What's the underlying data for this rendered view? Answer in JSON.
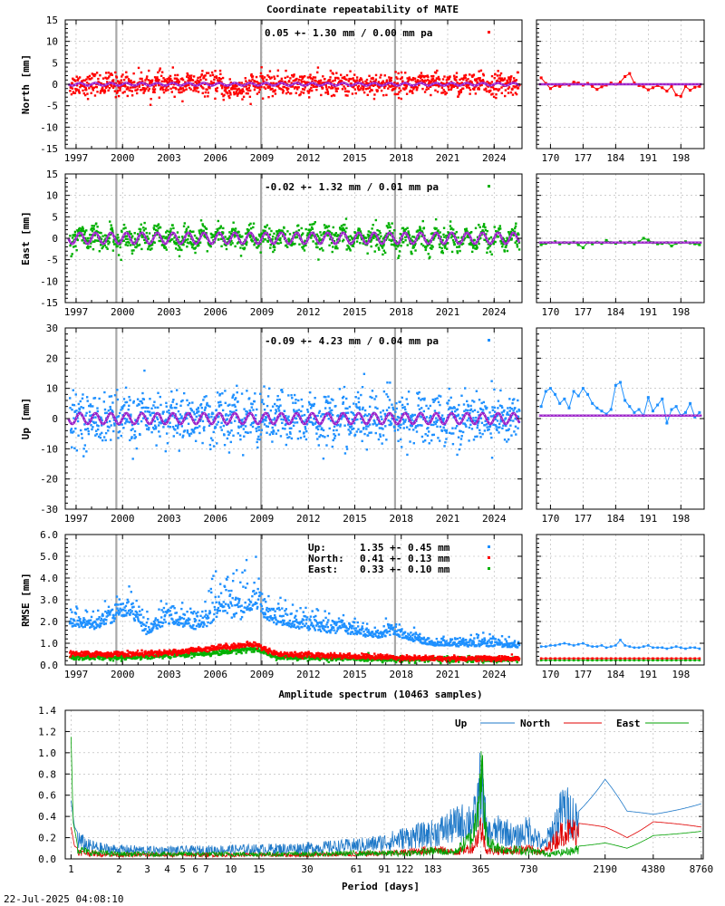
{
  "chart_data": [
    {
      "type": "scatter",
      "title": "Coordinate repeatability of MATE",
      "ylabel": "North [mm]",
      "ylim": [
        -15,
        15
      ],
      "yticks": [
        -15,
        -10,
        -5,
        0,
        5,
        10,
        15
      ],
      "xlim": [
        1996.3,
        2025.8
      ],
      "xticks": [
        1997,
        2000,
        2003,
        2006,
        2009,
        2012,
        2015,
        2018,
        2021,
        2024
      ],
      "xtick_labels": [
        "1997",
        "2000",
        "2003",
        "2006",
        "2009",
        "2012",
        "2015",
        "2018",
        "2021",
        "2024"
      ],
      "equipment_changes": [
        1999.6,
        2008.95,
        2017.6
      ],
      "annotation": "0.05 +- 1.30 mm /  0.00 mm pa",
      "color": "#ff0000",
      "spread": 1.3,
      "seasonal_amplitude": 0.3,
      "zoom": {
        "xlim": [
          167,
          203
        ],
        "xticks": [
          170,
          177,
          184,
          191,
          198
        ],
        "ylim": [
          -15,
          15
        ],
        "values": [
          1.5,
          0.2,
          -1.0,
          -0.3,
          -0.5,
          0.0,
          -0.2,
          0.5,
          0.3,
          -0.2,
          0.2,
          -0.5,
          -1.2,
          -0.6,
          -0.2,
          0.3,
          0.0,
          0.5,
          1.8,
          2.5,
          0.3,
          -0.3,
          -0.6,
          -1.3,
          -0.8,
          -0.3,
          -0.8,
          -1.6,
          -0.5,
          -2.5,
          -2.8,
          -0.5,
          -1.4,
          -0.7,
          -0.5
        ]
      }
    },
    {
      "type": "scatter",
      "ylabel": "East [mm]",
      "ylim": [
        -15,
        15
      ],
      "yticks": [
        -15,
        -10,
        -5,
        0,
        5,
        10,
        15
      ],
      "xlim": [
        1996.3,
        2025.8
      ],
      "xticks": [
        1997,
        2000,
        2003,
        2006,
        2009,
        2012,
        2015,
        2018,
        2021,
        2024
      ],
      "xtick_labels": [
        "1997",
        "2000",
        "2003",
        "2006",
        "2009",
        "2012",
        "2015",
        "2018",
        "2021",
        "2024"
      ],
      "equipment_changes": [
        1999.6,
        2008.95,
        2017.6
      ],
      "annotation": "-0.02 +- 1.32 mm /  0.01 mm pa",
      "color": "#00b000",
      "spread": 1.3,
      "seasonal_amplitude": 1.3,
      "zoom": {
        "xlim": [
          167,
          203
        ],
        "xticks": [
          170,
          177,
          184,
          191,
          198
        ],
        "ylim": [
          -15,
          15
        ],
        "values": [
          -1.5,
          -1.2,
          -1.0,
          -0.8,
          -1.3,
          -1.0,
          -1.2,
          -0.9,
          -1.5,
          -2.2,
          -1.0,
          -1.3,
          -0.9,
          -1.2,
          -0.5,
          -1.0,
          -1.2,
          -0.8,
          -1.1,
          -0.9,
          -1.3,
          -0.8,
          0.0,
          -0.4,
          -1.0,
          -1.3,
          -1.2,
          -1.0,
          -1.8,
          -1.2,
          -1.0,
          -0.8,
          -1.1,
          -1.3,
          -1.5
        ]
      }
    },
    {
      "type": "scatter",
      "ylabel": "Up [mm]",
      "ylim": [
        -30,
        30
      ],
      "yticks": [
        -30,
        -20,
        -10,
        0,
        10,
        20,
        30
      ],
      "xlim": [
        1996.3,
        2025.8
      ],
      "xticks": [
        1997,
        2000,
        2003,
        2006,
        2009,
        2012,
        2015,
        2018,
        2021,
        2024
      ],
      "xtick_labels": [
        "1997",
        "2000",
        "2003",
        "2006",
        "2009",
        "2012",
        "2015",
        "2018",
        "2021",
        "2024"
      ],
      "equipment_changes": [
        1999.6,
        2008.95,
        2017.6
      ],
      "annotation": "-0.09 +- 4.23 mm /  0.04 mm pa",
      "color": "#1e90ff",
      "spread": 4.2,
      "seasonal_amplitude": 1.8,
      "zoom": {
        "xlim": [
          167,
          203
        ],
        "xticks": [
          170,
          177,
          184,
          191,
          198
        ],
        "ylim": [
          -30,
          30
        ],
        "values": [
          4.0,
          9.0,
          10.0,
          8.0,
          5.0,
          6.5,
          3.5,
          9.0,
          7.5,
          10.0,
          8.0,
          5.0,
          3.5,
          2.5,
          1.5,
          3.0,
          11.0,
          12.0,
          6.0,
          4.0,
          2.0,
          3.0,
          1.0,
          7.0,
          2.5,
          4.5,
          6.5,
          -1.5,
          3.0,
          4.0,
          1.0,
          2.0,
          5.0,
          0.5,
          2.0
        ]
      }
    },
    {
      "type": "scatter",
      "ylabel": "RMSE [mm]",
      "ylim": [
        0,
        6
      ],
      "yticks": [
        0.0,
        1.0,
        2.0,
        3.0,
        4.0,
        5.0,
        6.0
      ],
      "xlim": [
        1996.3,
        2025.8
      ],
      "xticks": [
        1997,
        2000,
        2003,
        2006,
        2009,
        2012,
        2015,
        2018,
        2021,
        2024
      ],
      "xtick_labels": [
        "1997",
        "2000",
        "2003",
        "2006",
        "2009",
        "2012",
        "2015",
        "2018",
        "2021",
        "2024"
      ],
      "equipment_changes": [
        1999.6,
        2008.95,
        2017.6
      ],
      "legend": [
        {
          "name": "Up:",
          "value": "1.35 +- 0.45 mm",
          "color": "#1e90ff"
        },
        {
          "name": "North:",
          "value": "0.41 +- 0.13 mm",
          "color": "#ff0000"
        },
        {
          "name": "East:",
          "value": "0.33 +- 0.10 mm",
          "color": "#00b000"
        }
      ],
      "series": [
        {
          "name": "Up:",
          "color": "#1e90ff",
          "x": [
            1996.5,
            1998,
            1999.5,
            2000.5,
            2001.5,
            2003,
            2004.5,
            2005.5,
            2006.5,
            2007.5,
            2008.5,
            2009.5,
            2011,
            2013,
            2015,
            2016.5,
            2017.5,
            2018.5,
            2020,
            2022,
            2024,
            2025.6
          ],
          "values": [
            1.8,
            1.6,
            2.0,
            2.3,
            1.4,
            1.9,
            1.6,
            1.8,
            2.4,
            2.0,
            2.6,
            1.9,
            1.7,
            1.5,
            1.4,
            1.2,
            1.4,
            1.1,
            0.9,
            0.85,
            0.85,
            0.8
          ]
        },
        {
          "name": "North:",
          "color": "#ff0000",
          "x": [
            1996.5,
            2000,
            2003,
            2006,
            2008.5,
            2010,
            2015,
            2020,
            2025.6
          ],
          "values": [
            0.5,
            0.5,
            0.55,
            0.8,
            0.95,
            0.5,
            0.4,
            0.3,
            0.3
          ]
        },
        {
          "name": "East:",
          "color": "#00b000",
          "x": [
            1996.5,
            2000,
            2003,
            2006,
            2008.5,
            2010,
            2015,
            2020,
            2025.6
          ],
          "values": [
            0.35,
            0.35,
            0.45,
            0.55,
            0.75,
            0.35,
            0.3,
            0.25,
            0.25
          ]
        }
      ],
      "zoom": {
        "xlim": [
          167,
          203
        ],
        "xticks": [
          170,
          177,
          184,
          191,
          198
        ],
        "ylim": [
          0,
          6
        ],
        "up_values": [
          0.85,
          0.85,
          0.9,
          0.9,
          0.95,
          1.0,
          0.95,
          0.9,
          0.95,
          1.0,
          0.9,
          0.85,
          0.85,
          0.9,
          0.8,
          0.85,
          0.9,
          1.15,
          0.9,
          0.85,
          0.8,
          0.8,
          0.85,
          0.9,
          0.8,
          0.8,
          0.8,
          0.75,
          0.8,
          0.85,
          0.8,
          0.75,
          0.8,
          0.8,
          0.75
        ],
        "north_values": [
          0.3,
          0.3,
          0.3,
          0.3,
          0.3,
          0.3,
          0.3,
          0.3,
          0.3,
          0.3,
          0.3,
          0.3,
          0.3,
          0.3,
          0.3,
          0.3,
          0.3,
          0.3,
          0.3,
          0.3,
          0.3,
          0.3,
          0.3,
          0.3,
          0.3,
          0.3,
          0.3,
          0.3,
          0.3,
          0.3,
          0.3,
          0.3,
          0.3,
          0.3,
          0.3
        ],
        "east_values": [
          0.22,
          0.22,
          0.22,
          0.22,
          0.22,
          0.22,
          0.22,
          0.22,
          0.22,
          0.22,
          0.22,
          0.22,
          0.22,
          0.22,
          0.22,
          0.22,
          0.22,
          0.22,
          0.22,
          0.22,
          0.22,
          0.22,
          0.22,
          0.22,
          0.22,
          0.22,
          0.22,
          0.22,
          0.22,
          0.22,
          0.22,
          0.22,
          0.22,
          0.22,
          0.22
        ]
      }
    },
    {
      "type": "line",
      "title": "Amplitude spectrum (10463 samples)",
      "xlabel": "Period [days]",
      "ylim": [
        0,
        1.4
      ],
      "yticks": [
        0.0,
        0.2,
        0.4,
        0.6,
        0.8,
        1.0,
        1.2,
        1.4
      ],
      "ytick_labels": [
        "0.0",
        "0.2",
        "0.4",
        "0.6",
        "0.8",
        "1.0",
        "1.2",
        "1.4"
      ],
      "xlim": [
        0.92,
        9000
      ],
      "xscale": "log",
      "xticks": [
        1,
        2,
        3,
        4,
        5,
        6,
        7,
        10,
        15,
        30,
        61,
        91,
        122,
        183,
        365,
        730,
        2190,
        4380,
        8760
      ],
      "xtick_labels": [
        "1",
        "2",
        "3",
        "4",
        "5",
        "6",
        "7",
        "10",
        "15",
        "30",
        "61",
        "91",
        "122",
        "183",
        "365",
        "730",
        "2190",
        "4380",
        "8760"
      ],
      "legend_position": "top-right",
      "series": [
        {
          "name": "Up",
          "color": "#1e78c8",
          "x": [
            1.0,
            1.05,
            1.15,
            1.3,
            1.6,
            2,
            3,
            5,
            10,
            20,
            40,
            80,
            120,
            180,
            250,
            300,
            340,
            365,
            400,
            500,
            600,
            730,
            900,
            1200,
            1500,
            2190,
            3000,
            4380,
            8760
          ],
          "values": [
            0.55,
            0.3,
            0.2,
            0.15,
            0.12,
            0.11,
            0.1,
            0.1,
            0.11,
            0.12,
            0.14,
            0.18,
            0.25,
            0.3,
            0.4,
            0.45,
            0.5,
            0.9,
            0.3,
            0.35,
            0.25,
            0.35,
            0.15,
            0.6,
            0.45,
            0.75,
            0.45,
            0.42,
            0.52
          ]
        },
        {
          "name": "North",
          "color": "#e00000",
          "x": [
            1.0,
            1.05,
            1.15,
            1.5,
            2,
            5,
            10,
            30,
            60,
            120,
            183,
            250,
            330,
            365,
            400,
            500,
            730,
            900,
            1200,
            2190,
            3000,
            4380,
            8760
          ],
          "values": [
            0.3,
            0.12,
            0.08,
            0.06,
            0.05,
            0.05,
            0.05,
            0.05,
            0.06,
            0.08,
            0.12,
            0.08,
            0.15,
            0.4,
            0.1,
            0.1,
            0.12,
            0.08,
            0.35,
            0.3,
            0.2,
            0.35,
            0.3
          ]
        },
        {
          "name": "East",
          "color": "#00a000",
          "x": [
            1.0,
            1.03,
            1.1,
            1.3,
            2,
            5,
            10,
            30,
            60,
            120,
            183,
            250,
            330,
            365,
            400,
            500,
            730,
            1000,
            1500,
            2190,
            3000,
            4380,
            8760
          ],
          "values": [
            1.15,
            0.35,
            0.12,
            0.08,
            0.06,
            0.06,
            0.06,
            0.06,
            0.07,
            0.07,
            0.1,
            0.08,
            0.3,
            1.15,
            0.2,
            0.12,
            0.1,
            0.06,
            0.12,
            0.15,
            0.1,
            0.22,
            0.26
          ]
        }
      ]
    }
  ],
  "timestamp": "22-Jul-2025 04:08:10"
}
